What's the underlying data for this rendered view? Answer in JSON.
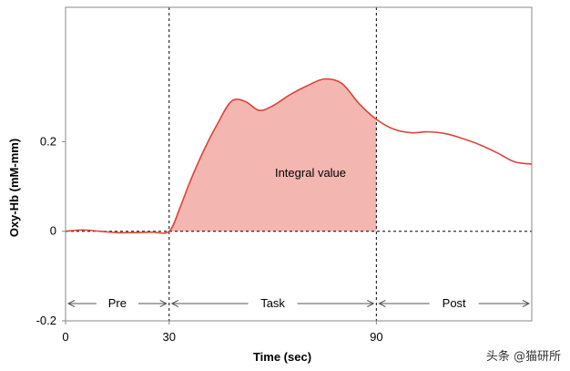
{
  "chart_data": {
    "type": "area",
    "title": "",
    "xlabel": "Time (sec)",
    "ylabel": "Oxy-Hb (mM-mm)",
    "xlim": [
      0,
      135
    ],
    "ylim": [
      -0.2,
      0.5
    ],
    "x_ticks": [
      {
        "value": 0,
        "label": "0"
      },
      {
        "value": 30,
        "label": "30"
      },
      {
        "value": 90,
        "label": "90"
      }
    ],
    "y_ticks": [
      {
        "value": -0.2,
        "label": "-0.2"
      },
      {
        "value": 0,
        "label": "0"
      },
      {
        "value": 0.2,
        "label": "0.2"
      }
    ],
    "grid": false,
    "series": [
      {
        "x": [
          0,
          5,
          10,
          15,
          20,
          25,
          30,
          33,
          36,
          40,
          44,
          48,
          52,
          56,
          60,
          65,
          70,
          75,
          80,
          85,
          90,
          95,
          100,
          105,
          110,
          115,
          120,
          125,
          130,
          135
        ],
        "y": [
          0.0,
          0.003,
          0.0,
          -0.003,
          -0.003,
          -0.002,
          0.0,
          0.05,
          0.11,
          0.18,
          0.24,
          0.29,
          0.29,
          0.27,
          0.28,
          0.305,
          0.325,
          0.34,
          0.33,
          0.285,
          0.25,
          0.228,
          0.22,
          0.222,
          0.218,
          0.207,
          0.193,
          0.175,
          0.155,
          0.15
        ]
      }
    ],
    "shaded_region": {
      "x_start": 30,
      "x_end": 90,
      "label": "Integral value"
    },
    "phase_markers": [
      30,
      90
    ],
    "phases": [
      {
        "label": "Pre",
        "x_start": 0,
        "x_end": 30
      },
      {
        "label": "Task",
        "x_start": 30,
        "x_end": 90
      },
      {
        "label": "Post",
        "x_start": 90,
        "x_end": 135
      }
    ],
    "colors": {
      "line": "#d9453a",
      "fill": "#f4b6b1",
      "axes": "#888888",
      "dashed": "#000000"
    }
  },
  "watermark": "头条 @猫研所"
}
